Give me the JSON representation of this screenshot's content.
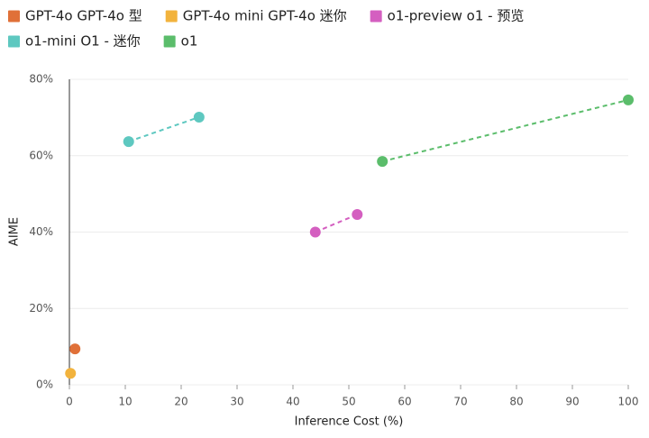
{
  "chart_data": {
    "type": "scatter",
    "x_label": "Inference Cost (%)",
    "y_label": "AIME",
    "series": [
      {
        "name": "GPT-4o GPT-4o 型",
        "color": "#e07038",
        "x": [
          1.0
        ],
        "values": [
          9.4
        ]
      },
      {
        "name": "GPT-4o mini GPT-4o 迷你",
        "color": "#f2b33d",
        "x": [
          0.2
        ],
        "values": [
          3.0
        ]
      },
      {
        "name": "o1-preview o1 - 预览",
        "color": "#d45fc0",
        "x": [
          44,
          51.5
        ],
        "values": [
          40,
          44.6
        ]
      },
      {
        "name": "o1-mini O1 - 迷你",
        "color": "#5ec8c0",
        "x": [
          10.6,
          23.2
        ],
        "values": [
          63.7,
          70.1
        ]
      },
      {
        "name": "o1",
        "color": "#5bbd6b",
        "x": [
          56,
          100
        ],
        "values": [
          58.5,
          74.6
        ]
      }
    ],
    "line_style": "dashed",
    "xlim": [
      0,
      100
    ],
    "ylim": [
      0,
      80
    ],
    "xticks": [
      0,
      10,
      20,
      30,
      40,
      50,
      60,
      70,
      80,
      90,
      100
    ],
    "yticks": [
      {
        "value": 0,
        "label": "0%"
      },
      {
        "value": 20,
        "label": "20%"
      },
      {
        "value": 40,
        "label": "40%"
      },
      {
        "value": 60,
        "label": "60%"
      },
      {
        "value": 80,
        "label": "80%"
      }
    ],
    "grid": true
  }
}
